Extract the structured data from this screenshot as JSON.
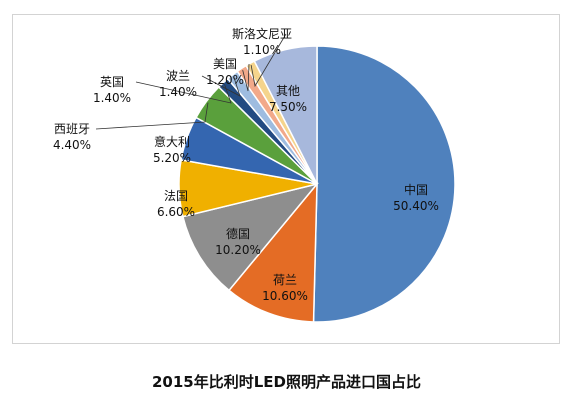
{
  "chart_data": {
    "type": "pie",
    "title": "2015年比利时LED照明产品进口国占比",
    "slices": [
      {
        "name": "中国",
        "value": 50.4,
        "label": "50.40%",
        "color": "#4f81bd"
      },
      {
        "name": "荷兰",
        "value": 10.6,
        "label": "10.60%",
        "color": "#e46c25"
      },
      {
        "name": "德国",
        "value": 10.2,
        "label": "10.20%",
        "color": "#8e8e8e"
      },
      {
        "name": "法国",
        "value": 6.6,
        "label": "6.60%",
        "color": "#f0b000"
      },
      {
        "name": "意大利",
        "value": 5.2,
        "label": "5.20%",
        "color": "#3466b0"
      },
      {
        "name": "西班牙",
        "value": 4.4,
        "label": "4.40%",
        "color": "#5aa03c"
      },
      {
        "name": "英国",
        "value": 1.4,
        "label": "1.40%",
        "color": "#234b82"
      },
      {
        "name": "波兰",
        "value": 1.4,
        "label": "1.40%",
        "color": "#9ebce0"
      },
      {
        "name": "美国",
        "value": 1.2,
        "label": "1.20%",
        "color": "#f2a98a"
      },
      {
        "name": "斯洛文尼亚",
        "value": 1.1,
        "label": "1.10%",
        "color": "#f5d48c"
      },
      {
        "name": "其他",
        "value": 7.5,
        "label": "7.50%",
        "color": "#a7b8dc"
      }
    ]
  }
}
